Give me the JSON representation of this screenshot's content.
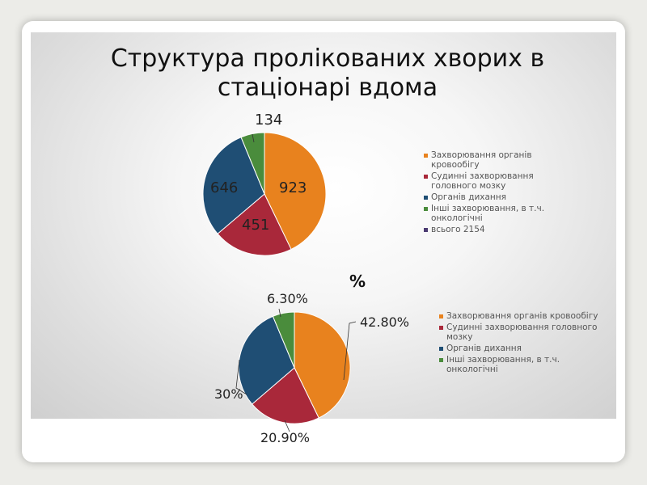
{
  "title": "Структура пролікованих хворих в стаціонарі вдома",
  "percent_heading": "%",
  "colors": {
    "orange": "#E8821E",
    "red": "#A9283A",
    "blue": "#1F4E74",
    "green": "#4A8C3C",
    "purple": "#4B3B72"
  },
  "legend_top": [
    {
      "label": "Захворювання органів кровообігу",
      "color": "#E8821E"
    },
    {
      "label": "Судинні захворювання головного мозку",
      "color": "#A9283A"
    },
    {
      "label": "Органів дихання",
      "color": "#1F4E74"
    },
    {
      "label": "Інші захворювання, в т.ч. онкологічні",
      "color": "#4A8C3C"
    },
    {
      "label": "всього 2154",
      "color": "#4B3B72"
    }
  ],
  "legend_bottom": [
    {
      "label": "Захворювання органів кровообігу",
      "color": "#E8821E"
    },
    {
      "label": "Судинні захворювання головного мозку",
      "color": "#A9283A"
    },
    {
      "label": "Органів дихання",
      "color": "#1F4E74"
    },
    {
      "label": "Інші захворювання, в т.ч. онкологічні",
      "color": "#4A8C3C"
    }
  ],
  "chart_data": [
    {
      "type": "pie",
      "categories": [
        "Захворювання органів кровообігу",
        "Судинні захворювання головного мозку",
        "Органів дихання",
        "Інші захворювання, в т.ч. онкологічні"
      ],
      "values": [
        923,
        451,
        646,
        134
      ],
      "labels": [
        "923",
        "451",
        "646",
        "134"
      ],
      "legend_extra": "всього 2154",
      "legend": "right"
    },
    {
      "type": "pie",
      "categories": [
        "Захворювання органів кровообігу",
        "Судинні захворювання головного мозку",
        "Органів дихання",
        "Інші захворювання, в т.ч. онкологічні"
      ],
      "values": [
        42.8,
        20.9,
        30,
        6.3
      ],
      "labels": [
        "42.80%",
        "20.90%",
        "30%",
        "6.30%"
      ],
      "legend": "right"
    }
  ]
}
